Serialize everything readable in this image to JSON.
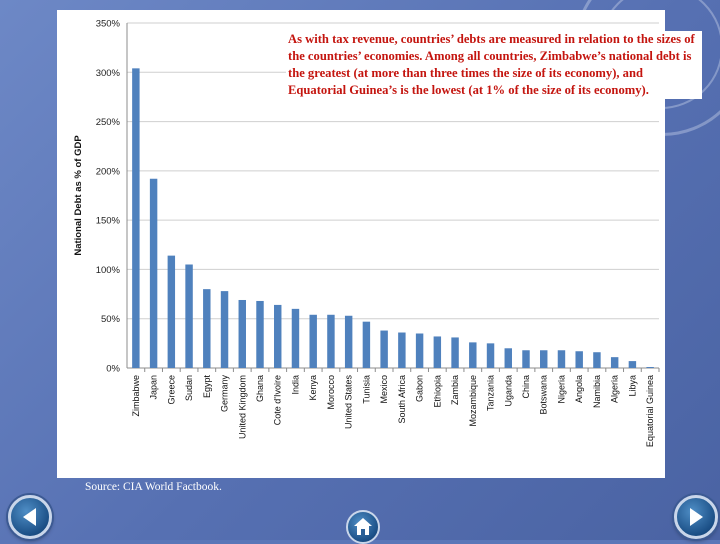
{
  "slide": {
    "annotation": "As with tax revenue, countries’ debts are measured in relation to the sizes of the countries’ economies. Among all countries, Zimbabwe’s national debt is the greatest (at more than three times the size of its economy), and Equatorial Guinea’s is the lowest (at 1% of the size of its economy).",
    "source": "Source: CIA World Factbook."
  },
  "colors": {
    "bar": "#4f81bd",
    "annotation_text": "#c4150f",
    "background": "#5b77b8"
  },
  "chart_data": {
    "type": "bar",
    "ylabel": "National Debt as % of GDP",
    "xlabel": "",
    "ylim": [
      0,
      350
    ],
    "yticks": [
      0,
      50,
      100,
      150,
      200,
      250,
      300,
      350
    ],
    "ytick_labels": [
      "0%",
      "50%",
      "100%",
      "150%",
      "200%",
      "250%",
      "300%",
      "350%"
    ],
    "grid": true,
    "categories": [
      "Zimbabwe",
      "Japan",
      "Greece",
      "Sudan",
      "Egypt",
      "Germany",
      "United Kingdom",
      "Ghana",
      "Cote d'Ivoire",
      "India",
      "Kenya",
      "Morocco",
      "United States",
      "Tunisia",
      "Mexico",
      "South Africa",
      "Gabon",
      "Ethiopia",
      "Zambia",
      "Mozambique",
      "Tanzania",
      "Uganda",
      "China",
      "Botswana",
      "Nigeria",
      "Angola",
      "Namibia",
      "Algeria",
      "Libya",
      "Equatorial Guinea"
    ],
    "values": [
      304,
      192,
      114,
      105,
      80,
      78,
      69,
      68,
      64,
      60,
      54,
      54,
      53,
      47,
      38,
      36,
      35,
      32,
      31,
      26,
      25,
      20,
      18,
      18,
      18,
      17,
      16,
      11,
      7,
      1
    ]
  }
}
